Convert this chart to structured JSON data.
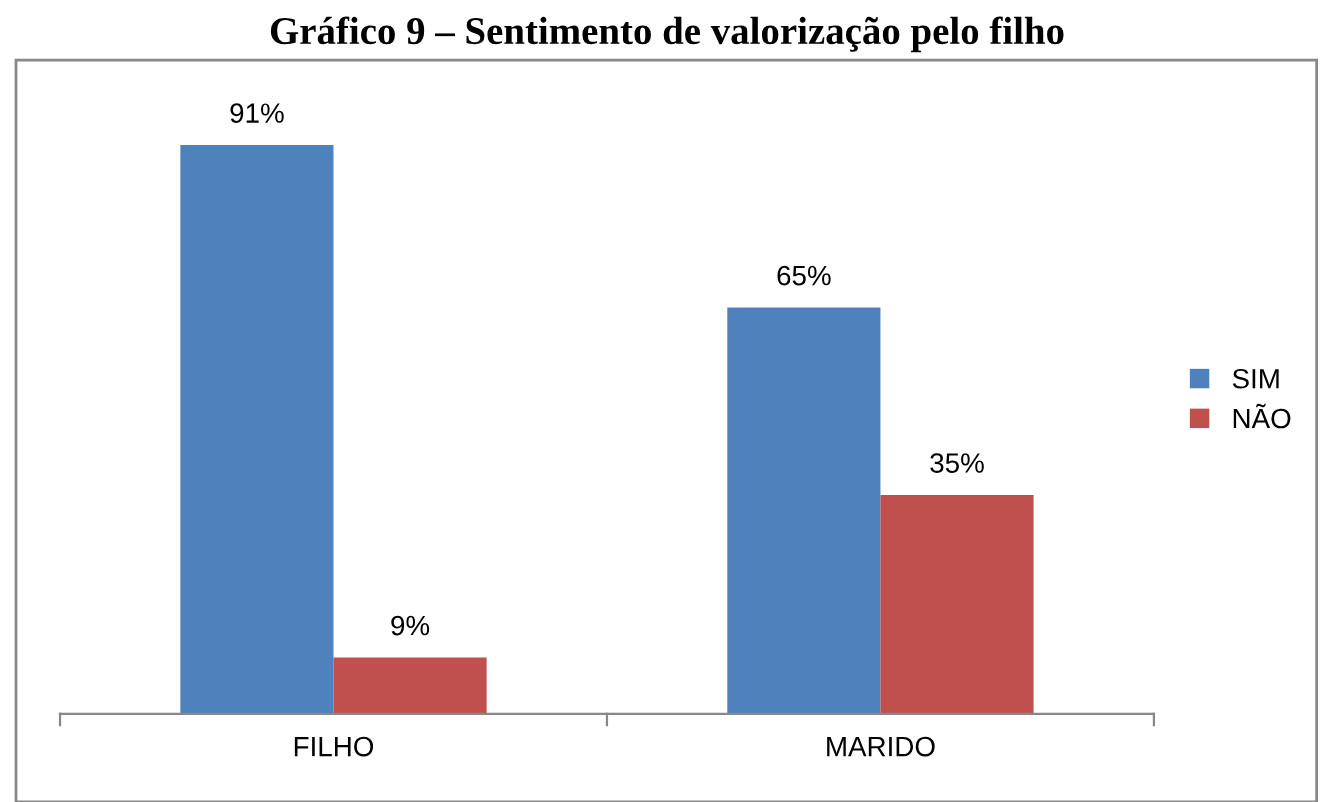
{
  "chart_data": {
    "type": "bar",
    "title": "Gráfico 9 – Sentimento de valorização pelo filho",
    "categories": [
      "FILHO",
      "MARIDO"
    ],
    "series": [
      {
        "name": "SIM",
        "color": "#4f81bd",
        "values": [
          91,
          65
        ],
        "value_labels": [
          "91%",
          "65%"
        ]
      },
      {
        "name": "NÃO",
        "color": "#c0504d",
        "values": [
          9,
          35
        ],
        "value_labels": [
          "9%",
          "35%"
        ]
      }
    ],
    "legend": "right",
    "grid": false
  }
}
